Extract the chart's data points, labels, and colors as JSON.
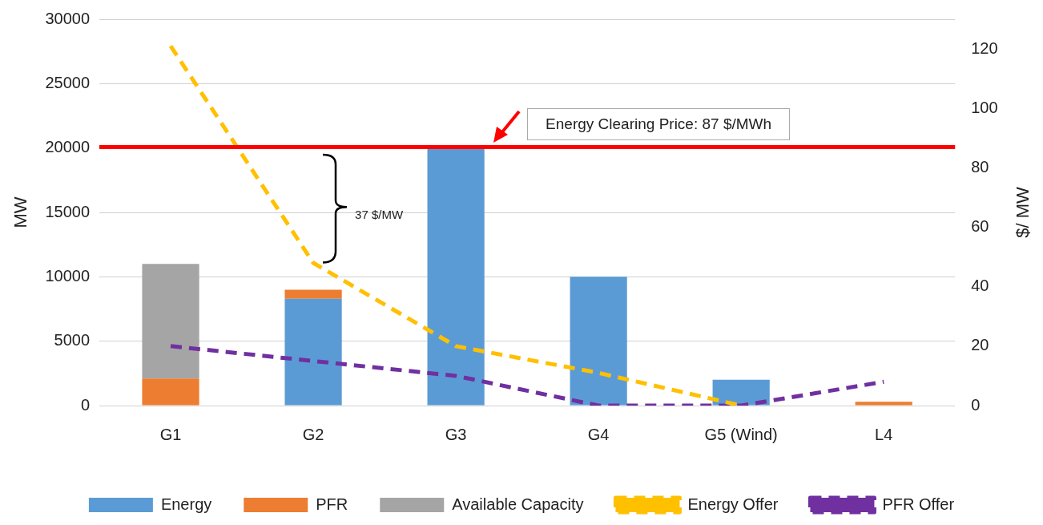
{
  "chart_data": {
    "type": "bar",
    "stacked": true,
    "ylabel": "MW",
    "y2label": "$/ MW",
    "categories": [
      "G1",
      "G2",
      "G3",
      "G4",
      "G5 (Wind)",
      "L4"
    ],
    "series": [
      {
        "name": "Energy",
        "color": "#5b9bd5",
        "values": [
          0,
          8300,
          20000,
          10000,
          2000,
          0
        ]
      },
      {
        "name": "PFR",
        "color": "#ed7d31",
        "values": [
          2100,
          700,
          0,
          0,
          0,
          300
        ]
      },
      {
        "name": "Available Capacity",
        "color": "#a5a5a5",
        "values": [
          8900,
          0,
          0,
          0,
          0,
          0
        ]
      },
      {
        "name": "Energy Offer",
        "type": "line",
        "axis": "y2",
        "line_style": "dashed",
        "color": "#ffc000",
        "values": [
          121,
          48,
          20,
          11,
          0,
          null
        ]
      },
      {
        "name": "PFR Offer",
        "type": "line",
        "axis": "y2",
        "line_style": "dashed",
        "color": "#7030a0",
        "values": [
          20,
          15,
          10,
          0,
          0,
          8
        ]
      }
    ],
    "ylim": [
      0,
      30000
    ],
    "yticks": [
      0,
      5000,
      10000,
      15000,
      20000,
      25000,
      30000
    ],
    "y2lim": [
      0,
      130
    ],
    "y2ticks": [
      0,
      20,
      40,
      60,
      80,
      100,
      120
    ],
    "ref_lines": [
      {
        "axis": "y2",
        "value": 87,
        "label": "Energy Clearing Price: 87 $/MWh",
        "color": "#ff0000"
      }
    ],
    "annotations": [
      "37 $/MW"
    ],
    "grid": "y",
    "legend": "bottom",
    "marker": "none"
  }
}
